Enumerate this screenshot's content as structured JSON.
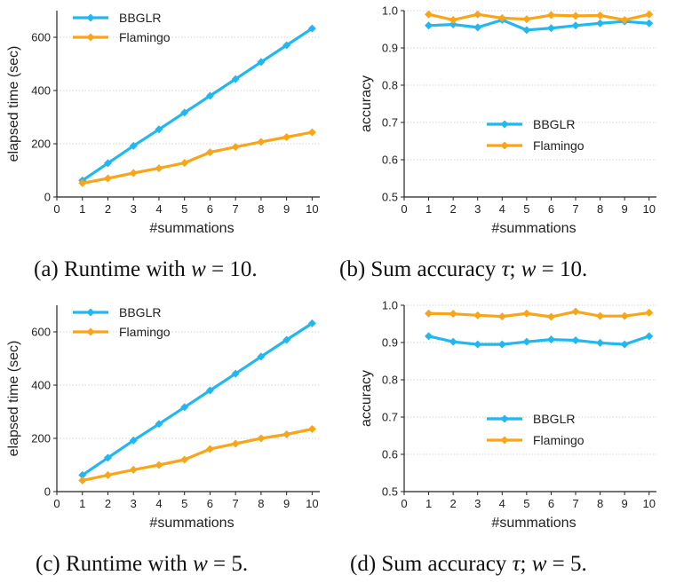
{
  "chart_data": [
    {
      "id": "a",
      "type": "line",
      "caption": {
        "prefix": "(a) Runtime with ",
        "var": "w",
        "suffix": " = 10."
      },
      "xlabel": "#summations",
      "ylabel": "elapsed time (sec)",
      "xlim": [
        0,
        10.3
      ],
      "ylim": [
        0,
        700
      ],
      "xticks": [
        0,
        1,
        2,
        3,
        4,
        5,
        6,
        7,
        8,
        9,
        10
      ],
      "yticks": [
        0,
        200,
        400,
        600
      ],
      "ytick_labels": [
        "0",
        "200",
        "400",
        "600"
      ],
      "grid": "horizontal",
      "legend": "top-left",
      "x": [
        1,
        2,
        3,
        4,
        5,
        6,
        7,
        8,
        9,
        10
      ],
      "series": [
        {
          "name": "BBGLR",
          "color": "#22b8ef",
          "values": [
            62,
            127,
            192,
            254,
            317,
            380,
            443,
            507,
            570,
            633
          ]
        },
        {
          "name": "Flamingo",
          "color": "#f9a51a",
          "values": [
            52,
            70,
            90,
            108,
            128,
            168,
            188,
            207,
            225,
            243
          ]
        }
      ]
    },
    {
      "id": "b",
      "type": "line",
      "caption": {
        "prefix": "(b) Sum accuracy ",
        "var": "τ",
        "middle": "; ",
        "var2": "w",
        "suffix": " = 10."
      },
      "xlabel": "#summations",
      "ylabel": "accuracy",
      "xlim": [
        0,
        10.3
      ],
      "ylim": [
        0.5,
        1.0
      ],
      "xticks": [
        0,
        1,
        2,
        3,
        4,
        5,
        6,
        7,
        8,
        9,
        10
      ],
      "yticks": [
        0.5,
        0.6,
        0.7,
        0.8,
        0.9,
        1.0
      ],
      "ytick_labels": [
        "0.5",
        "0.6",
        "0.7",
        "0.8",
        "0.9",
        "1.0"
      ],
      "grid": "horizontal",
      "legend": "center-right",
      "x": [
        1,
        2,
        3,
        4,
        5,
        6,
        7,
        8,
        9,
        10
      ],
      "series": [
        {
          "name": "BBGLR",
          "color": "#22b8ef",
          "values": [
            0.96,
            0.963,
            0.955,
            0.975,
            0.948,
            0.953,
            0.96,
            0.966,
            0.971,
            0.966
          ]
        },
        {
          "name": "Flamingo",
          "color": "#f9a51a",
          "values": [
            0.99,
            0.975,
            0.99,
            0.98,
            0.977,
            0.988,
            0.986,
            0.987,
            0.975,
            0.99
          ]
        }
      ]
    },
    {
      "id": "c",
      "type": "line",
      "caption": {
        "prefix": "(c) Runtime with ",
        "var": "w",
        "suffix": " = 5."
      },
      "xlabel": "#summations",
      "ylabel": "elapsed time (sec)",
      "xlim": [
        0,
        10.3
      ],
      "ylim": [
        0,
        700
      ],
      "xticks": [
        0,
        1,
        2,
        3,
        4,
        5,
        6,
        7,
        8,
        9,
        10
      ],
      "yticks": [
        0,
        200,
        400,
        600
      ],
      "ytick_labels": [
        "0",
        "200",
        "400",
        "600"
      ],
      "grid": "horizontal",
      "legend": "top-left",
      "x": [
        1,
        2,
        3,
        4,
        5,
        6,
        7,
        8,
        9,
        10
      ],
      "series": [
        {
          "name": "BBGLR",
          "color": "#22b8ef",
          "values": [
            62,
            127,
            192,
            254,
            317,
            380,
            443,
            507,
            570,
            632
          ]
        },
        {
          "name": "Flamingo",
          "color": "#f9a51a",
          "values": [
            42,
            62,
            82,
            100,
            120,
            160,
            180,
            200,
            215,
            235
          ]
        }
      ]
    },
    {
      "id": "d",
      "type": "line",
      "caption": {
        "prefix": "(d) Sum accuracy ",
        "var": "τ",
        "middle": "; ",
        "var2": "w",
        "suffix": " = 5."
      },
      "xlabel": "#summations",
      "ylabel": "accuracy",
      "xlim": [
        0,
        10.3
      ],
      "ylim": [
        0.5,
        1.0
      ],
      "xticks": [
        0,
        1,
        2,
        3,
        4,
        5,
        6,
        7,
        8,
        9,
        10
      ],
      "yticks": [
        0.5,
        0.6,
        0.7,
        0.8,
        0.9,
        1.0
      ],
      "ytick_labels": [
        "0.5",
        "0.6",
        "0.7",
        "0.8",
        "0.9",
        "1.0"
      ],
      "grid": "horizontal",
      "legend": "center-right",
      "x": [
        1,
        2,
        3,
        4,
        5,
        6,
        7,
        8,
        9,
        10
      ],
      "series": [
        {
          "name": "BBGLR",
          "color": "#22b8ef",
          "values": [
            0.917,
            0.902,
            0.895,
            0.895,
            0.902,
            0.908,
            0.906,
            0.899,
            0.895,
            0.917
          ]
        },
        {
          "name": "Flamingo",
          "color": "#f9a51a",
          "values": [
            0.978,
            0.977,
            0.973,
            0.97,
            0.978,
            0.969,
            0.983,
            0.971,
            0.971,
            0.98
          ]
        }
      ]
    }
  ]
}
